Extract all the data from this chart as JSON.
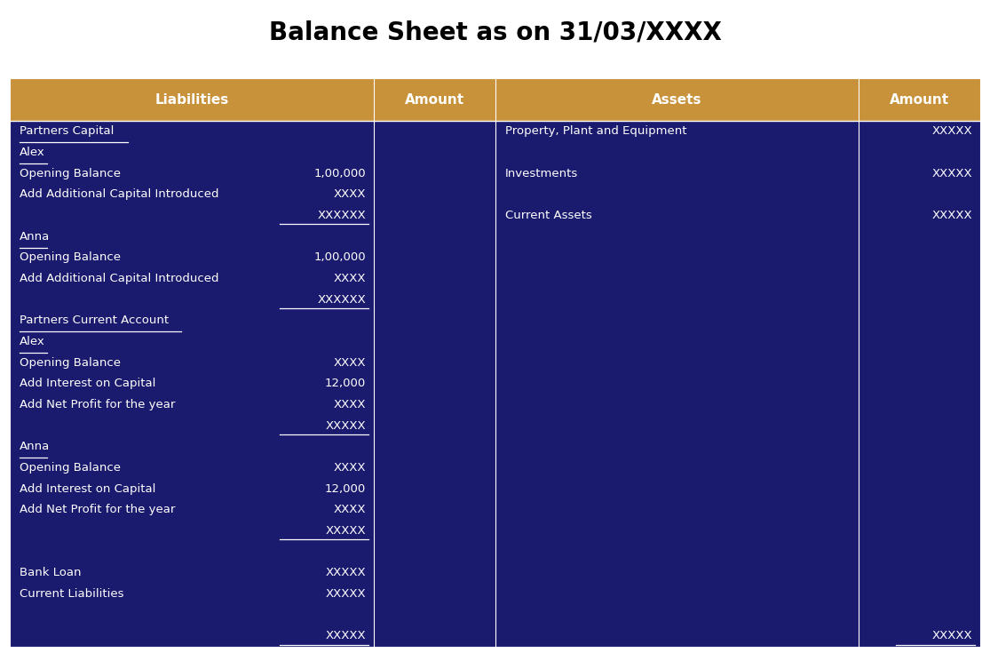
{
  "title": "Balance Sheet as on 31/03/XXXX",
  "title_fontsize": 20,
  "bg_color": "#1a1a6e",
  "header_color": "#c8923a",
  "header_text_color": "#ffffff",
  "text_color": "#ffffff",
  "title_color": "#000000",
  "fig_bg": "#ffffff",
  "headers": [
    "Liabilities",
    "Amount",
    "Assets",
    "Amount"
  ],
  "liabilities_rows": [
    {
      "label": "Partners Capital",
      "amount": "",
      "underline_label": true,
      "underline_amount": false
    },
    {
      "label": "Alex",
      "amount": "",
      "underline_label": true,
      "underline_amount": false
    },
    {
      "label": "Opening Balance",
      "amount": "1,00,000",
      "underline_label": false,
      "underline_amount": false
    },
    {
      "label": "Add Additional Capital Introduced",
      "amount": "XXXX",
      "underline_label": false,
      "underline_amount": false
    },
    {
      "label": "",
      "amount": "XXXXXX",
      "underline_label": false,
      "underline_amount": true
    },
    {
      "label": "Anna",
      "amount": "",
      "underline_label": true,
      "underline_amount": false
    },
    {
      "label": "Opening Balance",
      "amount": "1,00,000",
      "underline_label": false,
      "underline_amount": false
    },
    {
      "label": "Add Additional Capital Introduced",
      "amount": "XXXX",
      "underline_label": false,
      "underline_amount": false
    },
    {
      "label": "",
      "amount": "XXXXXX",
      "underline_label": false,
      "underline_amount": true
    },
    {
      "label": "Partners Current Account",
      "amount": "",
      "underline_label": true,
      "underline_amount": false
    },
    {
      "label": "Alex",
      "amount": "",
      "underline_label": true,
      "underline_amount": false
    },
    {
      "label": "Opening Balance",
      "amount": "XXXX",
      "underline_label": false,
      "underline_amount": false
    },
    {
      "label": "Add Interest on Capital",
      "amount": "12,000",
      "underline_label": false,
      "underline_amount": false
    },
    {
      "label": "Add Net Profit for the year",
      "amount": "XXXX",
      "underline_label": false,
      "underline_amount": false
    },
    {
      "label": "",
      "amount": "XXXXX",
      "underline_label": false,
      "underline_amount": true
    },
    {
      "label": "Anna",
      "amount": "",
      "underline_label": true,
      "underline_amount": false
    },
    {
      "label": "Opening Balance",
      "amount": "XXXX",
      "underline_label": false,
      "underline_amount": false
    },
    {
      "label": "Add Interest on Capital",
      "amount": "12,000",
      "underline_label": false,
      "underline_amount": false
    },
    {
      "label": "Add Net Profit for the year",
      "amount": "XXXX",
      "underline_label": false,
      "underline_amount": false
    },
    {
      "label": "",
      "amount": "XXXXX",
      "underline_label": false,
      "underline_amount": true
    },
    {
      "label": "",
      "amount": "",
      "underline_label": false,
      "underline_amount": false
    },
    {
      "label": "Bank Loan",
      "amount": "XXXXX",
      "underline_label": false,
      "underline_amount": false
    },
    {
      "label": "Current Liabilities",
      "amount": "XXXXX",
      "underline_label": false,
      "underline_amount": false
    },
    {
      "label": "",
      "amount": "",
      "underline_label": false,
      "underline_amount": false
    },
    {
      "label": "",
      "amount": "XXXXX",
      "underline_label": false,
      "underline_amount": true
    }
  ],
  "assets_rows": [
    {
      "label": "Property, Plant and Equipment",
      "amount": "XXXXX",
      "underline_amount": false
    },
    {
      "label": "",
      "amount": "",
      "underline_amount": false
    },
    {
      "label": "Investments",
      "amount": "XXXXX",
      "underline_amount": false
    },
    {
      "label": "",
      "amount": "",
      "underline_amount": false
    },
    {
      "label": "Current Assets",
      "amount": "XXXXX",
      "underline_amount": false
    },
    {
      "label": "",
      "amount": "",
      "underline_amount": false
    },
    {
      "label": "",
      "amount": "",
      "underline_amount": false
    },
    {
      "label": "",
      "amount": "",
      "underline_amount": false
    },
    {
      "label": "",
      "amount": "",
      "underline_amount": false
    },
    {
      "label": "",
      "amount": "",
      "underline_amount": false
    },
    {
      "label": "",
      "amount": "",
      "underline_amount": false
    },
    {
      "label": "",
      "amount": "",
      "underline_amount": false
    },
    {
      "label": "",
      "amount": "",
      "underline_amount": false
    },
    {
      "label": "",
      "amount": "",
      "underline_amount": false
    },
    {
      "label": "",
      "amount": "",
      "underline_amount": false
    },
    {
      "label": "",
      "amount": "",
      "underline_amount": false
    },
    {
      "label": "",
      "amount": "",
      "underline_amount": false
    },
    {
      "label": "",
      "amount": "",
      "underline_amount": false
    },
    {
      "label": "",
      "amount": "",
      "underline_amount": false
    },
    {
      "label": "",
      "amount": "",
      "underline_amount": false
    },
    {
      "label": "",
      "amount": "",
      "underline_amount": false
    },
    {
      "label": "",
      "amount": "",
      "underline_amount": false
    },
    {
      "label": "",
      "amount": "",
      "underline_amount": false
    },
    {
      "label": "",
      "amount": "",
      "underline_amount": false
    },
    {
      "label": "",
      "amount": "XXXXX",
      "underline_amount": true
    }
  ]
}
